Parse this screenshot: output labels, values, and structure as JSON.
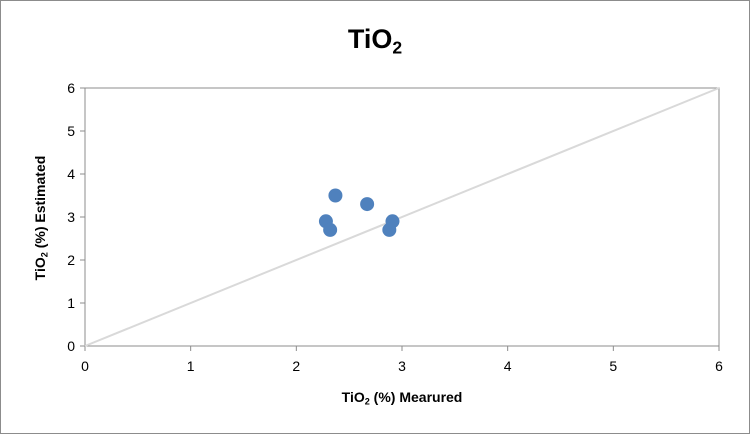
{
  "chart_data": {
    "type": "scatter",
    "title": {
      "main": "TiO",
      "sub": "2"
    },
    "xlabel": {
      "pre": "TiO",
      "sub": "2",
      "post": " (%) Mearured"
    },
    "ylabel": {
      "pre": "TiO",
      "sub": "2",
      "post": " (%) Estimated"
    },
    "xlim": [
      0,
      6
    ],
    "ylim": [
      0,
      6
    ],
    "xticks": [
      0,
      1,
      2,
      3,
      4,
      5,
      6
    ],
    "yticks": [
      0,
      1,
      2,
      3,
      4,
      5,
      6
    ],
    "grid": false,
    "legend": "none",
    "series": [
      {
        "color": "#4f81bd",
        "points": [
          {
            "x": 2.37,
            "y": 3.5
          },
          {
            "x": 2.67,
            "y": 3.3
          },
          {
            "x": 2.28,
            "y": 2.9
          },
          {
            "x": 2.32,
            "y": 2.7
          },
          {
            "x": 2.91,
            "y": 2.9
          },
          {
            "x": 2.88,
            "y": 2.7
          }
        ]
      }
    ],
    "reference_line": {
      "from": [
        0,
        0
      ],
      "to": [
        6,
        6
      ],
      "color": "#d9d9d9"
    }
  }
}
